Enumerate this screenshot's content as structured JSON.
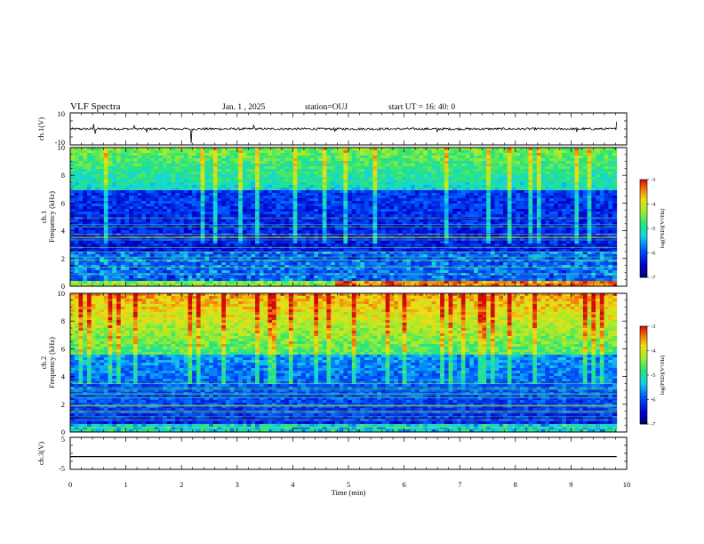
{
  "header": {
    "title": "VLF Spectra",
    "date": "Jan. 1 , 2025",
    "station": "station=OUJ",
    "start_ut": "start UT = 16: 40: 0"
  },
  "chart_data": [
    {
      "type": "line",
      "name": "ch1-waveform",
      "ylabel": "ch.1(V)",
      "ylim": [
        -10,
        10
      ],
      "yticks": [
        "10",
        "-10"
      ],
      "baseline_v": 0,
      "spikes": [
        {
          "t": 0.42,
          "v": 3.0
        },
        {
          "t": 0.45,
          "v": -3.0
        },
        {
          "t": 1.15,
          "v": 2.0
        },
        {
          "t": 1.38,
          "v": -2.2
        },
        {
          "t": 2.18,
          "v": -9.0
        },
        {
          "t": 3.3,
          "v": 2.5
        },
        {
          "t": 4.75,
          "v": -1.8
        },
        {
          "t": 6.6,
          "v": -2.0
        },
        {
          "t": 9.1,
          "v": -2.0
        },
        {
          "t": 9.82,
          "v": 4.5
        }
      ]
    },
    {
      "type": "heatmap",
      "name": "ch1-spectrogram",
      "ylabel": "ch.1\nFrequency (kHz)",
      "ylim": [
        0,
        10
      ],
      "yticks": [
        "0",
        "2",
        "4",
        "6",
        "8",
        "10"
      ],
      "colorbar": {
        "label": "log(PSD)(V²/Hz)",
        "range": [
          -7,
          -3
        ],
        "ticks": [
          "-3",
          "-4",
          "-5",
          "-6",
          "-7"
        ]
      }
    },
    {
      "type": "heatmap",
      "name": "ch2-spectrogram",
      "ylabel": "ch.2\nFrequency (kHz)",
      "ylim": [
        0,
        10
      ],
      "yticks": [
        "0",
        "2",
        "4",
        "6",
        "8",
        "10"
      ],
      "colorbar": {
        "label": "log(PSD)(V²/Hz)",
        "range": [
          -7,
          -3
        ],
        "ticks": [
          "-3",
          "-4",
          "-5",
          "-6",
          "-7"
        ]
      }
    },
    {
      "type": "line",
      "name": "ch3-waveform",
      "ylabel": "ch.3(V)",
      "ylim": [
        -5,
        5
      ],
      "yticks": [
        "5",
        "-5"
      ],
      "constant_v": -1.0
    }
  ],
  "xaxis": {
    "label": "Time (min)",
    "range": [
      0,
      10
    ],
    "data_end": 9.82,
    "ticks": [
      "0",
      "1",
      "2",
      "3",
      "4",
      "5",
      "6",
      "7",
      "8",
      "9",
      "10"
    ]
  },
  "colors": {
    "low": "#00007a",
    "mid": "#1fd0e0",
    "high": "#e8e020",
    "max": "#d81010"
  }
}
